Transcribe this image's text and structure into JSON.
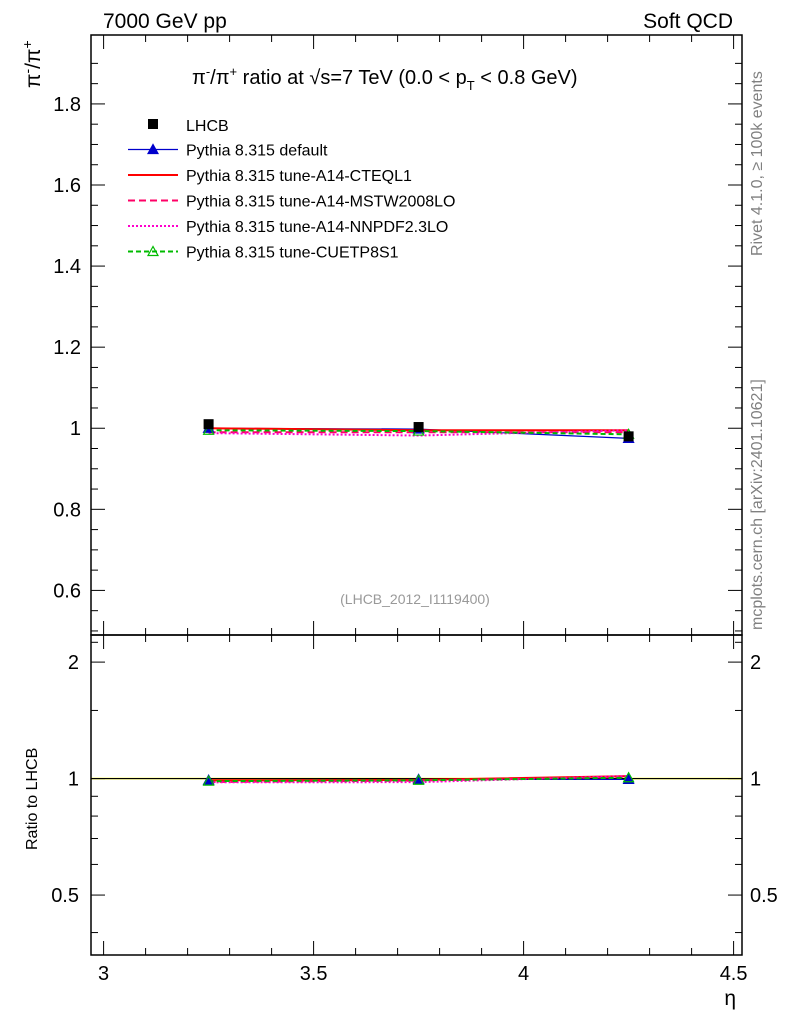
{
  "header": {
    "left": "7000 GeV pp",
    "right": "Soft QCD"
  },
  "side": {
    "rivet": "Rivet 4.1.0, ≥ 100k events",
    "mcplots": "mcplots.cern.ch [arXiv:2401.10621]"
  },
  "chart_data": {
    "type": "line",
    "title": "π⁻/π⁺ ratio at √s=7 TeV (0.0 < pT < 0.8 GeV)",
    "title_parts": {
      "a": "π",
      "b": "-",
      "c": "/π",
      "d": "+",
      "e": " ratio at ",
      "f": "√",
      "g": "s=7 TeV (0.0 < p",
      "h": "T",
      "i": " < 0.8 GeV)"
    },
    "ylabel": "π⁻/π⁺",
    "ylabel_parts": {
      "a": "π",
      "b": "-",
      "c": "/π",
      "d": "+"
    },
    "xlabel": "η",
    "ratio_ylabel": "Ratio to LHCB",
    "watermark": "(LHCB_2012_I1119400)",
    "xlim": [
      2.97,
      4.52
    ],
    "ylim": [
      0.49,
      1.97
    ],
    "ratio_ylim": [
      0.35,
      2.35
    ],
    "x_ticks": [
      "3",
      "3.5",
      "4",
      "4.5"
    ],
    "y_ticks": [
      "0.6",
      "0.8",
      "1",
      "1.2",
      "1.4",
      "1.6",
      "1.8"
    ],
    "ratio_y_ticks": [
      "0.5",
      "1",
      "2"
    ],
    "x": [
      3.25,
      3.75,
      4.25
    ],
    "data": {
      "name": "LHCB",
      "values": [
        1.01,
        1.003,
        0.98
      ],
      "errors": [
        0.006,
        0.005,
        0.008
      ]
    },
    "series": [
      {
        "name": "Pythia 8.315 default",
        "values": [
          1.0,
          0.998,
          0.975
        ],
        "ratio": [
          0.99,
          0.995,
          0.995
        ],
        "color": "#0000cc",
        "dash": "",
        "marker": "triangle"
      },
      {
        "name": "Pythia 8.315 tune-A14-CTEQL1",
        "values": [
          1.0,
          0.995,
          0.995
        ],
        "ratio": [
          0.99,
          0.992,
          1.015
        ],
        "color": "#ff0000",
        "dash": "",
        "marker": "none"
      },
      {
        "name": "Pythia 8.315 tune-A14-MSTW2008LO",
        "values": [
          0.99,
          0.99,
          0.99
        ],
        "ratio": [
          0.98,
          0.988,
          1.01
        ],
        "color": "#ff0066",
        "dash": "7,4",
        "marker": "none"
      },
      {
        "name": "Pythia 8.315 tune-A14-NNPDF2.3LO",
        "values": [
          0.988,
          0.982,
          0.995
        ],
        "ratio": [
          0.978,
          0.979,
          1.015
        ],
        "color": "#ff00cc",
        "dash": "2,2",
        "marker": "none"
      },
      {
        "name": "Pythia 8.315 tune-CUETP8S1",
        "values": [
          0.995,
          0.993,
          0.985
        ],
        "ratio": [
          0.985,
          0.99,
          1.005
        ],
        "color": "#00bb00",
        "dash": "5,3",
        "marker": "triangle-open"
      }
    ]
  }
}
